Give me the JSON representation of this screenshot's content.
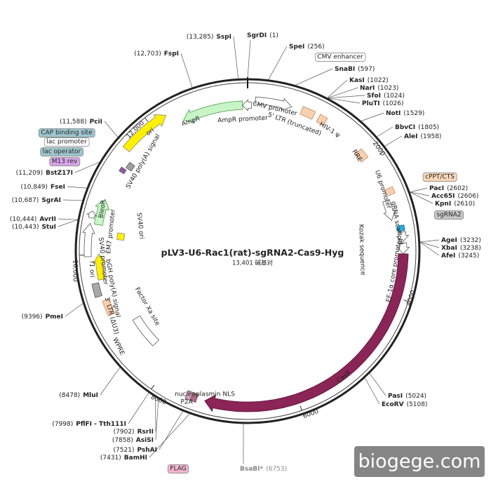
{
  "title": "pLV3-U6-Rac1(rat)-sgRNA2-Cas9-Hyg",
  "size": "13,401 碱基对",
  "watermark": "biogege.com",
  "sites": [
    {
      "name": "SgrDI",
      "position": "(1)"
    },
    {
      "name": "SspI",
      "position": "(13,285)"
    },
    {
      "name": "FspI",
      "position": "(12,703)"
    },
    {
      "name": "SpeI",
      "position": "(256)"
    },
    {
      "name": "SnaBI",
      "position": "(597)"
    },
    {
      "name": "KasI",
      "position": "(1022)"
    },
    {
      "name": "NarI",
      "position": "(1023)"
    },
    {
      "name": "SfoI",
      "position": "(1024)"
    },
    {
      "name": "PluTI",
      "position": "(1026)"
    },
    {
      "name": "NotI",
      "position": "(1529)"
    },
    {
      "name": "BbvCI",
      "position": "(1805)"
    },
    {
      "name": "AleI",
      "position": "(1958)"
    },
    {
      "name": "PacI",
      "position": "(2602)"
    },
    {
      "name": "Acc65I",
      "position": "(2606)"
    },
    {
      "name": "KpnI",
      "position": "(2610)"
    },
    {
      "name": "AgeI",
      "position": "(3232)"
    },
    {
      "name": "XbaI",
      "position": "(3238)"
    },
    {
      "name": "AfeI",
      "position": "(3245)"
    },
    {
      "name": "PasI",
      "position": "(5024)"
    },
    {
      "name": "EcoRV",
      "position": "(5108)"
    },
    {
      "name": "BsaBI*",
      "position": "(6753)"
    },
    {
      "name": "BamHI",
      "position": "(7431)"
    },
    {
      "name": "PshAI",
      "position": "(7521)"
    },
    {
      "name": "AsiSI",
      "position": "(7858)"
    },
    {
      "name": "RsrII",
      "position": "(7902)"
    },
    {
      "name": "PflFI - Tth111I",
      "position": "(7998)"
    },
    {
      "name": "MluI",
      "position": "(8478)"
    },
    {
      "name": "PmeI",
      "position": "(9396)"
    },
    {
      "name": "StuI",
      "position": "(10,443)"
    },
    {
      "name": "AvrII",
      "position": "(10,444)"
    },
    {
      "name": "SgrAI",
      "position": "(10,687)"
    },
    {
      "name": "FseI",
      "position": "(10,849)"
    },
    {
      "name": "BstZ17I",
      "position": "(11,209)"
    },
    {
      "name": "PciI",
      "position": "(11,588)"
    }
  ],
  "features": [
    "CMV enhancer",
    "CMV promoter",
    "5' LTR (truncated)",
    "HIV-1 ψ",
    "RRE",
    "cPPT/CTS",
    "U6 promoter",
    "sgRNA2",
    "gRNA scaffold",
    "Kozak sequence",
    "EF-1α core promoter",
    "Cas9",
    "nucleoplasmin NLS",
    "P2A",
    "FLAG",
    "Factor Xa site",
    "WPRE",
    "3' LTR (ΔU3)",
    "bGH poly(A) signal",
    "SV40 promoter",
    "f1 ori",
    "EM7 promoter",
    "SV40 ori",
    "BleoR",
    "SV40 poly(A) signal",
    "ori",
    "AmpR",
    "AmpR promoter",
    "M13 rev",
    "lac operator",
    "lac promoter",
    "CAP binding site"
  ],
  "scale_labels": [
    "2000",
    "4000",
    "6000",
    "8000",
    "10,000",
    "12,000"
  ]
}
